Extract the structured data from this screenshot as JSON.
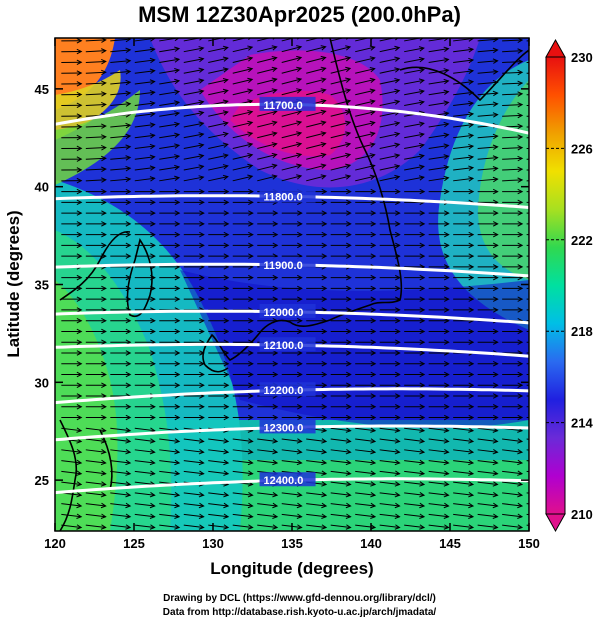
{
  "title": "MSM 12Z30Apr2025 (200.0hPa)",
  "axes": {
    "xlabel": "Longitude (degrees)",
    "ylabel": "Latitude  (degrees)",
    "xlim": [
      120,
      150
    ],
    "ylim": [
      22.4,
      47.6
    ],
    "xticks": [
      "120",
      "125",
      "130",
      "135",
      "140",
      "145",
      "150"
    ],
    "yticks": [
      "25",
      "30",
      "35",
      "40",
      "45"
    ]
  },
  "colorbar": {
    "min": 210,
    "max": 230,
    "ticks": [
      "230",
      "226",
      "222",
      "218",
      "214",
      "210"
    ],
    "colors": [
      "#e0108c",
      "#b000d0",
      "#6a2ad8",
      "#2020e0",
      "#2a6af0",
      "#00bfe6",
      "#00e0a0",
      "#30d850",
      "#a8e020",
      "#f0e000",
      "#f0a000",
      "#ff5000",
      "#e81010"
    ]
  },
  "contours": {
    "color": "#ffffff",
    "levels": [
      {
        "label": "11700.0",
        "lat_at_135": 44.2
      },
      {
        "label": "11800.0",
        "lat_at_135": 39.5
      },
      {
        "label": "11900.0",
        "lat_at_135": 36.0
      },
      {
        "label": "12000.0",
        "lat_at_135": 33.6
      },
      {
        "label": "12100.0",
        "lat_at_135": 31.9
      },
      {
        "label": "12200.0",
        "lat_at_135": 29.6
      },
      {
        "label": "12300.0",
        "lat_at_135": 27.7
      },
      {
        "label": "12400.0",
        "lat_at_135": 25.0
      }
    ]
  },
  "credits": [
    "Drawing by DCL (https://www.gfd-dennou.org/library/dcl/)",
    "Data from http://database.rish.kyoto-u.ac.jp/arch/jmadata/"
  ]
}
